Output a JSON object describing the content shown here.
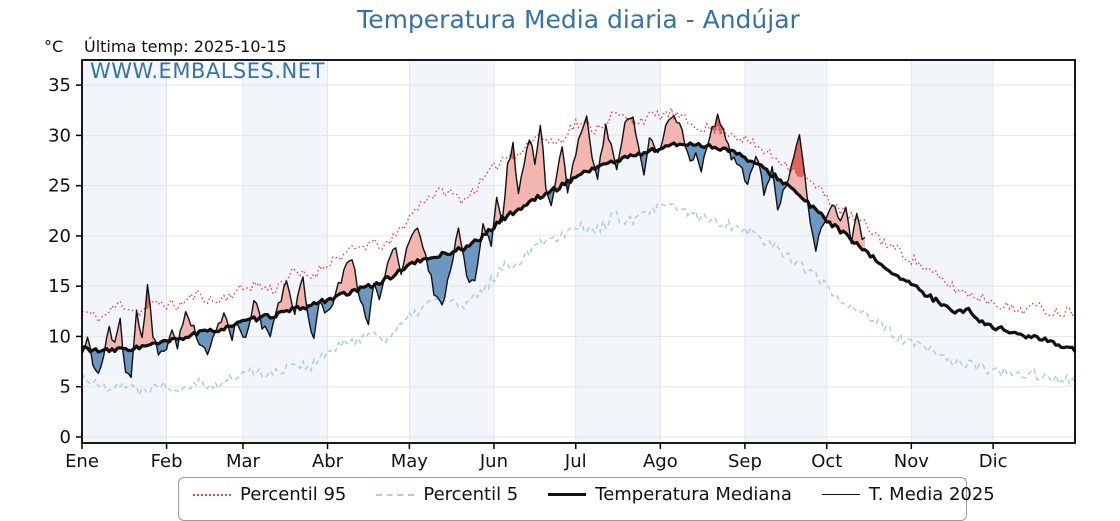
{
  "chart_data": {
    "type": "line",
    "title": "Temperatura Media diaria - Andújar",
    "unit": "°C",
    "annotation": "Última temp: 2025-10-15",
    "watermark": "WWW.EMBALSES.NET",
    "x_categories": [
      "Ene",
      "Feb",
      "Mar",
      "Abr",
      "May",
      "Jun",
      "Jul",
      "Ago",
      "Sep",
      "Oct",
      "Nov",
      "Dic"
    ],
    "month_days": [
      31,
      28,
      31,
      30,
      31,
      30,
      31,
      31,
      30,
      31,
      30,
      31
    ],
    "ylabel": "°C",
    "ylim": [
      -0.6,
      37.5
    ],
    "yticks": [
      0,
      5,
      10,
      15,
      20,
      25,
      30,
      35
    ],
    "grid": true,
    "legend_position": "bottom",
    "colors": {
      "title": "#3572a8",
      "watermark": "#3572a8",
      "p95": "#e4453c",
      "p5": "#a8cfe3",
      "median": "#111111",
      "t2025": "#111111",
      "fill_above": "#f2b5b0",
      "fill_below": "#6b97c2",
      "fill_above_p95": "#e0655c",
      "band": "#f2f6fa",
      "grid": "#e3e6e9",
      "frame": "#000000",
      "tick_text": "#111111"
    },
    "legend": [
      {
        "label": "Percentil 95",
        "style": "dotted-red"
      },
      {
        "label": "Percentil 5",
        "style": "dashed-lightblue"
      },
      {
        "label": "Temperatura Mediana",
        "style": "solid-thick-black"
      },
      {
        "label": "T. Media 2025",
        "style": "solid-thin-black"
      }
    ],
    "series": [
      {
        "name": "Percentil 95",
        "noise": 0.55,
        "seed": 11,
        "anchors": [
          [
            1,
            12.5
          ],
          [
            8,
            11.8
          ],
          [
            15,
            13.3
          ],
          [
            22,
            12.4
          ],
          [
            29,
            13.4
          ],
          [
            36,
            13.0
          ],
          [
            43,
            14.2
          ],
          [
            50,
            13.4
          ],
          [
            57,
            14.4
          ],
          [
            64,
            15.2
          ],
          [
            71,
            14.6
          ],
          [
            78,
            16.3
          ],
          [
            85,
            16.0
          ],
          [
            92,
            17.5
          ],
          [
            99,
            18.4
          ],
          [
            106,
            19.2
          ],
          [
            113,
            19.0
          ],
          [
            120,
            21.5
          ],
          [
            127,
            23.8
          ],
          [
            134,
            24.5
          ],
          [
            141,
            23.6
          ],
          [
            148,
            25.5
          ],
          [
            155,
            27.7
          ],
          [
            162,
            28.4
          ],
          [
            168,
            30.0
          ],
          [
            175,
            29.2
          ],
          [
            182,
            31.2
          ],
          [
            189,
            30.6
          ],
          [
            196,
            32.1
          ],
          [
            203,
            31.4
          ],
          [
            210,
            31.9
          ],
          [
            217,
            32.2
          ],
          [
            224,
            31.2
          ],
          [
            231,
            30.6
          ],
          [
            238,
            30.4
          ],
          [
            245,
            29.4
          ],
          [
            252,
            28.3
          ],
          [
            259,
            27.2
          ],
          [
            266,
            25.8
          ],
          [
            273,
            24.2
          ],
          [
            280,
            22.3
          ],
          [
            287,
            21.3
          ],
          [
            294,
            19.6
          ],
          [
            301,
            18.4
          ],
          [
            308,
            17.2
          ],
          [
            315,
            15.8
          ],
          [
            322,
            14.6
          ],
          [
            329,
            14.0
          ],
          [
            336,
            13.4
          ],
          [
            343,
            12.6
          ],
          [
            350,
            13.0
          ],
          [
            357,
            12.4
          ],
          [
            365,
            12.6
          ]
        ]
      },
      {
        "name": "Percentil 5",
        "noise": 0.55,
        "seed": 22,
        "anchors": [
          [
            1,
            6.2
          ],
          [
            8,
            4.9
          ],
          [
            15,
            5.4
          ],
          [
            22,
            4.6
          ],
          [
            29,
            5.3
          ],
          [
            36,
            4.8
          ],
          [
            43,
            5.6
          ],
          [
            50,
            5.0
          ],
          [
            57,
            6.0
          ],
          [
            64,
            6.6
          ],
          [
            71,
            6.2
          ],
          [
            78,
            7.4
          ],
          [
            85,
            7.0
          ],
          [
            92,
            8.6
          ],
          [
            99,
            9.4
          ],
          [
            106,
            10.3
          ],
          [
            113,
            9.8
          ],
          [
            120,
            11.6
          ],
          [
            127,
            13.2
          ],
          [
            134,
            13.8
          ],
          [
            141,
            12.8
          ],
          [
            148,
            14.6
          ],
          [
            155,
            16.8
          ],
          [
            162,
            17.6
          ],
          [
            168,
            19.5
          ],
          [
            175,
            19.8
          ],
          [
            182,
            21.2
          ],
          [
            189,
            20.4
          ],
          [
            196,
            22.0
          ],
          [
            203,
            21.4
          ],
          [
            210,
            22.6
          ],
          [
            217,
            23.0
          ],
          [
            224,
            22.2
          ],
          [
            231,
            21.6
          ],
          [
            238,
            21.2
          ],
          [
            245,
            20.6
          ],
          [
            252,
            19.4
          ],
          [
            259,
            18.2
          ],
          [
            266,
            16.8
          ],
          [
            273,
            15.2
          ],
          [
            280,
            13.4
          ],
          [
            287,
            12.6
          ],
          [
            294,
            11.0
          ],
          [
            301,
            9.8
          ],
          [
            308,
            9.0
          ],
          [
            315,
            8.2
          ],
          [
            322,
            7.4
          ],
          [
            329,
            7.0
          ],
          [
            336,
            6.6
          ],
          [
            343,
            6.0
          ],
          [
            350,
            6.4
          ],
          [
            357,
            5.6
          ],
          [
            365,
            5.8
          ]
        ]
      },
      {
        "name": "Temperatura Mediana",
        "noise": 0.25,
        "seed": 33,
        "anchors": [
          [
            1,
            8.9
          ],
          [
            8,
            8.5
          ],
          [
            15,
            8.7
          ],
          [
            22,
            8.9
          ],
          [
            29,
            9.3
          ],
          [
            36,
            9.7
          ],
          [
            43,
            10.3
          ],
          [
            50,
            10.6
          ],
          [
            57,
            11.2
          ],
          [
            64,
            11.7
          ],
          [
            71,
            12.1
          ],
          [
            78,
            12.6
          ],
          [
            85,
            13.1
          ],
          [
            92,
            13.8
          ],
          [
            99,
            14.3
          ],
          [
            106,
            15.0
          ],
          [
            113,
            15.7
          ],
          [
            120,
            17.0
          ],
          [
            127,
            17.7
          ],
          [
            134,
            18.2
          ],
          [
            141,
            18.8
          ],
          [
            148,
            19.9
          ],
          [
            155,
            21.7
          ],
          [
            162,
            22.8
          ],
          [
            168,
            23.8
          ],
          [
            175,
            24.7
          ],
          [
            182,
            25.9
          ],
          [
            189,
            26.8
          ],
          [
            196,
            27.4
          ],
          [
            203,
            28.0
          ],
          [
            210,
            28.5
          ],
          [
            217,
            29.0
          ],
          [
            224,
            29.2
          ],
          [
            231,
            28.9
          ],
          [
            238,
            28.6
          ],
          [
            245,
            27.6
          ],
          [
            252,
            26.5
          ],
          [
            259,
            25.2
          ],
          [
            266,
            23.5
          ],
          [
            273,
            21.8
          ],
          [
            280,
            20.3
          ],
          [
            288,
            18.4
          ],
          [
            294,
            17.2
          ],
          [
            301,
            15.8
          ],
          [
            308,
            14.6
          ],
          [
            315,
            13.4
          ],
          [
            318,
            13.2
          ],
          [
            321,
            12.4
          ],
          [
            326,
            12.6
          ],
          [
            331,
            11.4
          ],
          [
            336,
            10.9
          ],
          [
            343,
            10.3
          ],
          [
            350,
            9.9
          ],
          [
            357,
            9.4
          ],
          [
            365,
            8.7
          ]
        ]
      },
      {
        "name": "T. Media 2025",
        "noise": 0.45,
        "seed": 44,
        "end_day": 288,
        "anchors": [
          [
            1,
            8.0
          ],
          [
            3,
            10.3
          ],
          [
            5,
            7.0
          ],
          [
            7,
            6.3
          ],
          [
            9,
            8.0
          ],
          [
            11,
            11.2
          ],
          [
            13,
            9.0
          ],
          [
            15,
            11.5
          ],
          [
            17,
            6.5
          ],
          [
            19,
            5.9
          ],
          [
            21,
            12.6
          ],
          [
            23,
            9.5
          ],
          [
            25,
            15.3
          ],
          [
            27,
            10.0
          ],
          [
            29,
            8.2
          ],
          [
            32,
            9.0
          ],
          [
            34,
            10.8
          ],
          [
            36,
            9.2
          ],
          [
            39,
            12.4
          ],
          [
            42,
            11.0
          ],
          [
            44,
            9.0
          ],
          [
            47,
            8.2
          ],
          [
            50,
            10.5
          ],
          [
            53,
            12.2
          ],
          [
            56,
            10.0
          ],
          [
            58,
            11.5
          ],
          [
            61,
            9.6
          ],
          [
            64,
            13.8
          ],
          [
            67,
            11.0
          ],
          [
            70,
            10.2
          ],
          [
            73,
            13.0
          ],
          [
            76,
            15.4
          ],
          [
            79,
            12.5
          ],
          [
            82,
            16.3
          ],
          [
            84,
            11.5
          ],
          [
            86,
            10.0
          ],
          [
            88,
            13.2
          ],
          [
            91,
            12.3
          ],
          [
            94,
            14.2
          ],
          [
            97,
            16.5
          ],
          [
            100,
            18.0
          ],
          [
            103,
            13.5
          ],
          [
            106,
            11.5
          ],
          [
            108,
            15.5
          ],
          [
            110,
            14.0
          ],
          [
            113,
            17.0
          ],
          [
            116,
            19.0
          ],
          [
            118,
            16.0
          ],
          [
            121,
            19.8
          ],
          [
            124,
            20.5
          ],
          [
            127,
            18.0
          ],
          [
            130,
            14.5
          ],
          [
            133,
            13.2
          ],
          [
            136,
            16.5
          ],
          [
            139,
            20.8
          ],
          [
            142,
            16.0
          ],
          [
            145,
            15.3
          ],
          [
            148,
            21.0
          ],
          [
            151,
            19.0
          ],
          [
            153,
            23.5
          ],
          [
            155,
            21.2
          ],
          [
            157,
            27.0
          ],
          [
            159,
            29.3
          ],
          [
            161,
            24.0
          ],
          [
            163,
            27.2
          ],
          [
            165,
            29.8
          ],
          [
            167,
            27.3
          ],
          [
            169,
            31.3
          ],
          [
            171,
            25.2
          ],
          [
            173,
            22.9
          ],
          [
            175,
            26.2
          ],
          [
            177,
            28.6
          ],
          [
            179,
            24.6
          ],
          [
            181,
            27.6
          ],
          [
            184,
            30.0
          ],
          [
            186,
            32.0
          ],
          [
            188,
            28.0
          ],
          [
            190,
            25.8
          ],
          [
            193,
            30.8
          ],
          [
            195,
            29.0
          ],
          [
            197,
            26.2
          ],
          [
            200,
            31.3
          ],
          [
            203,
            31.8
          ],
          [
            205,
            28.5
          ],
          [
            207,
            26.3
          ],
          [
            209,
            29.8
          ],
          [
            212,
            28.0
          ],
          [
            215,
            31.0
          ],
          [
            218,
            32.2
          ],
          [
            221,
            30.5
          ],
          [
            224,
            27.2
          ],
          [
            226,
            28.5
          ],
          [
            228,
            26.4
          ],
          [
            231,
            30.0
          ],
          [
            234,
            31.8
          ],
          [
            237,
            29.5
          ],
          [
            239,
            28.0
          ],
          [
            242,
            27.2
          ],
          [
            245,
            24.8
          ],
          [
            248,
            28.3
          ],
          [
            251,
            24.3
          ],
          [
            254,
            26.6
          ],
          [
            256,
            22.8
          ],
          [
            259,
            24.8
          ],
          [
            262,
            27.5
          ],
          [
            264,
            30.0
          ],
          [
            266,
            26.0
          ],
          [
            268,
            21.0
          ],
          [
            270,
            18.9
          ],
          [
            272,
            20.5
          ],
          [
            276,
            23.2
          ],
          [
            279,
            21.5
          ],
          [
            281,
            22.8
          ],
          [
            283,
            19.5
          ],
          [
            285,
            21.8
          ],
          [
            287,
            19.8
          ],
          [
            288,
            20.3
          ]
        ]
      }
    ]
  }
}
